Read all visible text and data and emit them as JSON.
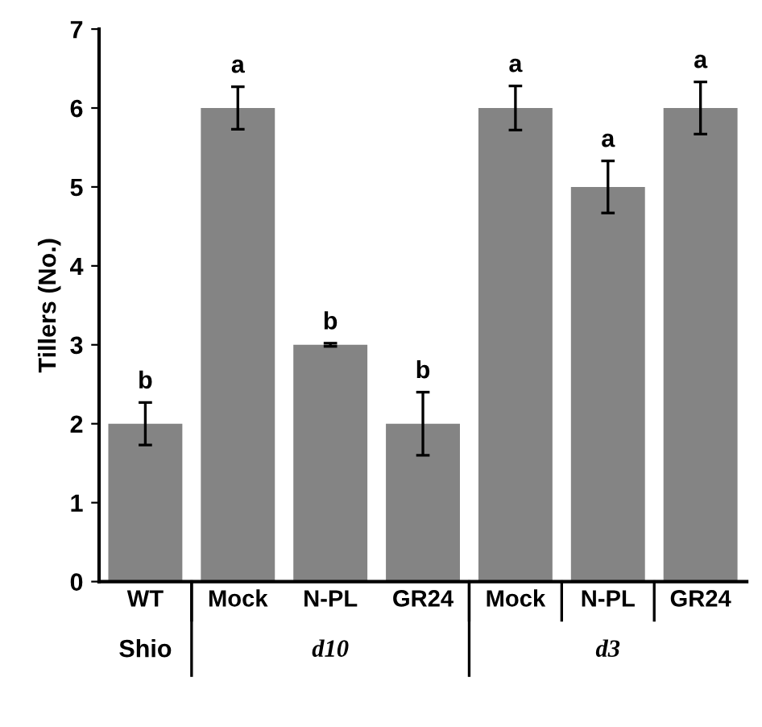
{
  "chart_data": {
    "type": "bar",
    "ylabel": "Tillers (No.)",
    "categories": [
      "WT",
      "Mock",
      "N-PL",
      "GR24",
      "Mock",
      "N-PL",
      "GR24"
    ],
    "values": [
      2,
      6,
      3,
      2,
      6,
      5,
      6
    ],
    "errors": [
      0.27,
      0.27,
      0.02,
      0.4,
      0.28,
      0.33,
      0.33
    ],
    "color": "#848484",
    "ylim": [
      0,
      7
    ],
    "yticks": [
      0,
      1,
      2,
      3,
      4,
      5,
      6,
      7
    ],
    "grid": false,
    "annotations": [
      "b",
      "a",
      "b",
      "b",
      "a",
      "a",
      "a",
      "Shio",
      "d10",
      "d3"
    ]
  }
}
